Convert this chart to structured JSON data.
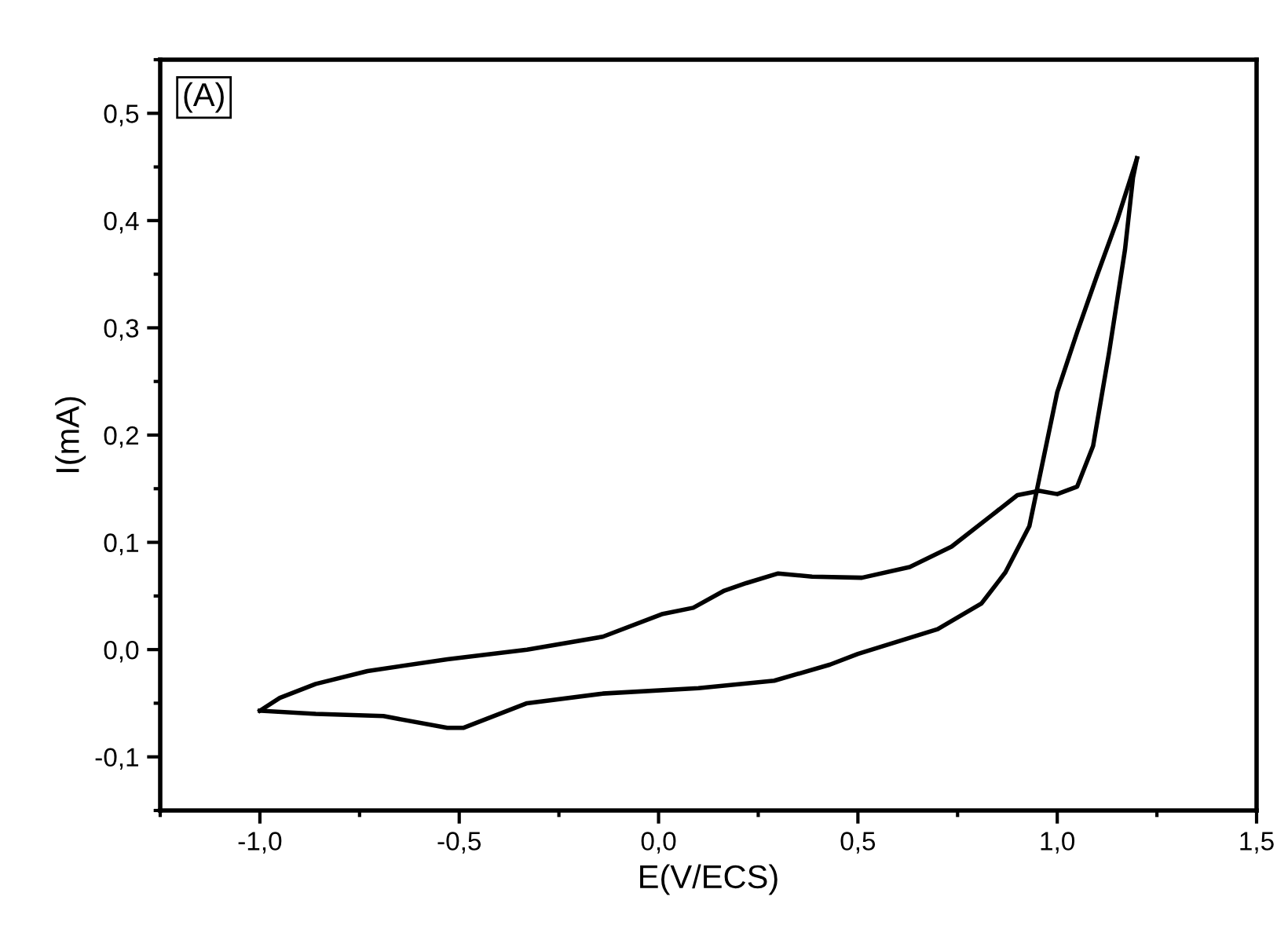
{
  "chart_data": {
    "type": "line",
    "xlabel": "E(V/ECS)",
    "ylabel": "I(mA)",
    "annotations": [
      "(A)"
    ],
    "series": [
      {
        "color": "#000000",
        "x": [
          -1.0,
          -0.86,
          -0.69,
          -0.53,
          -0.49,
          -0.33,
          -0.14,
          0.1,
          0.29,
          0.43,
          0.5,
          0.7,
          0.81,
          0.87,
          0.93,
          1.0,
          1.05,
          1.1,
          1.15,
          1.2
        ],
        "values": [
          -0.057,
          -0.06,
          -0.062,
          -0.073,
          -0.073,
          -0.05,
          -0.041,
          -0.036,
          -0.029,
          -0.014,
          -0.004,
          0.019,
          0.043,
          0.072,
          0.115,
          0.24,
          0.296,
          0.349,
          0.4,
          0.458
        ]
      },
      {
        "color": "#000000",
        "x": [
          1.2,
          1.19,
          1.17,
          1.13,
          1.09,
          1.05,
          1.0,
          0.955,
          0.9,
          0.835,
          0.735,
          0.63,
          0.51,
          0.385,
          0.3,
          0.22,
          0.165,
          0.087,
          0.008,
          -0.14,
          -0.33,
          -0.53,
          -0.73,
          -0.86,
          -0.95,
          -1.0
        ],
        "values": [
          0.458,
          0.44,
          0.373,
          0.277,
          0.19,
          0.152,
          0.145,
          0.148,
          0.144,
          0.125,
          0.096,
          0.077,
          0.067,
          0.068,
          0.071,
          0.062,
          0.055,
          0.039,
          0.033,
          0.012,
          0.0,
          -0.009,
          -0.02,
          -0.032,
          -0.045,
          -0.057
        ]
      }
    ],
    "xlim": [
      -1.25,
      1.5
    ],
    "ylim": [
      -0.15,
      0.55
    ],
    "xticks": [
      {
        "value": -1.0,
        "label": "-1,0"
      },
      {
        "value": -0.5,
        "label": "-0,5"
      },
      {
        "value": 0.0,
        "label": "0,0"
      },
      {
        "value": 0.5,
        "label": "0,5"
      },
      {
        "value": 1.0,
        "label": "1,0"
      },
      {
        "value": 1.5,
        "label": "1,5"
      }
    ],
    "yticks": [
      {
        "value": -0.1,
        "label": "-0,1"
      },
      {
        "value": 0.0,
        "label": "0,0"
      },
      {
        "value": 0.1,
        "label": "0,1"
      },
      {
        "value": 0.2,
        "label": "0,2"
      },
      {
        "value": 0.3,
        "label": "0,3"
      },
      {
        "value": 0.4,
        "label": "0,4"
      },
      {
        "value": 0.5,
        "label": "0,5"
      }
    ],
    "grid": false,
    "legend": false,
    "marker": "none",
    "line_style": "solid"
  }
}
